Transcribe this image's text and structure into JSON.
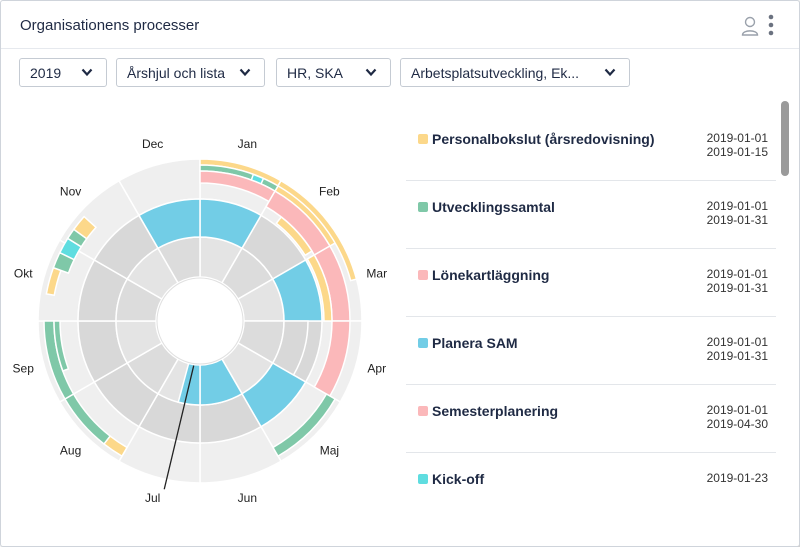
{
  "header": {
    "title": "Organisationens processer",
    "user_icon": "user-icon",
    "menu_icon": "kebab-menu-icon"
  },
  "filters": [
    {
      "value": "2019"
    },
    {
      "value": "Årshjul och lista"
    },
    {
      "value": "HR, SKA"
    },
    {
      "value": "Arbetsplatsutveckling, Ek..."
    }
  ],
  "wheel": {
    "months": [
      "Jan",
      "Feb",
      "Mar",
      "Apr",
      "Maj",
      "Jun",
      "Jul",
      "Aug",
      "Sep",
      "Okt",
      "Nov",
      "Dec"
    ],
    "colors": {
      "yellow": "#fcd88a",
      "green": "#7fc8a8",
      "pink": "#fbb8ba",
      "blue": "#72cde6",
      "cyan": "#5fdde0",
      "gray": "#d8d8d8",
      "light_gray": "#efefef"
    }
  },
  "processes": [
    {
      "name": "Personalbokslut (årsredovisning)",
      "color": "#fcd88a",
      "start": "2019-01-01",
      "end": "2019-01-15"
    },
    {
      "name": "Utvecklingssamtal",
      "color": "#7fc8a8",
      "start": "2019-01-01",
      "end": "2019-01-31"
    },
    {
      "name": "Lönekartläggning",
      "color": "#fbb8ba",
      "start": "2019-01-01",
      "end": "2019-01-31"
    },
    {
      "name": "Planera SAM",
      "color": "#72cde6",
      "start": "2019-01-01",
      "end": "2019-01-31"
    },
    {
      "name": "Semesterplanering",
      "color": "#fbb8ba",
      "start": "2019-01-01",
      "end": "2019-04-30"
    },
    {
      "name": "Kick-off",
      "color": "#5fdde0",
      "start": "2019-01-23",
      "end": ""
    }
  ]
}
